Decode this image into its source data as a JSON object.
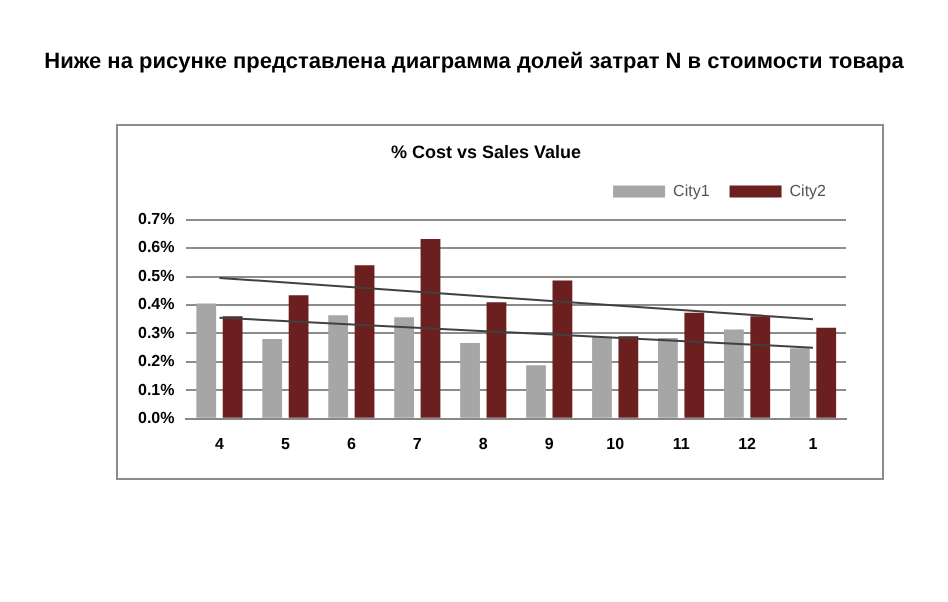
{
  "chart_data": {
    "type": "bar",
    "title": "% Cost vs Sales Value",
    "annotations": [
      "Ниже на рисунке представлена диаграмма долей затрат N в стоимости товара"
    ],
    "categories": [
      "4",
      "5",
      "6",
      "7",
      "8",
      "9",
      "10",
      "11",
      "12",
      "1"
    ],
    "series": [
      {
        "name": "City1",
        "color": "#a6a6a6",
        "values": [
          0.405,
          0.28,
          0.364,
          0.357,
          0.266,
          0.188,
          0.288,
          0.284,
          0.314,
          0.248
        ]
      },
      {
        "name": "City2",
        "color": "#6b1f1f",
        "values": [
          0.36,
          0.434,
          0.54,
          0.632,
          0.41,
          0.486,
          0.29,
          0.373,
          0.36,
          0.32
        ]
      },
      {
        "type": "line",
        "color": "#404040",
        "x": [
          "4",
          "1"
        ],
        "values": [
          0.495,
          0.35
        ]
      },
      {
        "type": "line",
        "color": "#404040",
        "x": [
          "4",
          "1"
        ],
        "values": [
          0.355,
          0.25
        ]
      }
    ],
    "ylim": [
      0,
      0.7
    ],
    "yticks": [
      {
        "value": 0,
        "label": "0.0%"
      },
      {
        "value": 0.1,
        "label": "0.1%"
      },
      {
        "value": 0.2,
        "label": "0.2%"
      },
      {
        "value": 0.3,
        "label": "0.3%"
      },
      {
        "value": 0.4,
        "label": "0.4%"
      },
      {
        "value": 0.5,
        "label": "0.5%"
      },
      {
        "value": 0.6,
        "label": "0.6%"
      },
      {
        "value": 0.7,
        "label": "0.7%"
      }
    ],
    "grid": "y",
    "legend": "top right",
    "marker": "none"
  }
}
